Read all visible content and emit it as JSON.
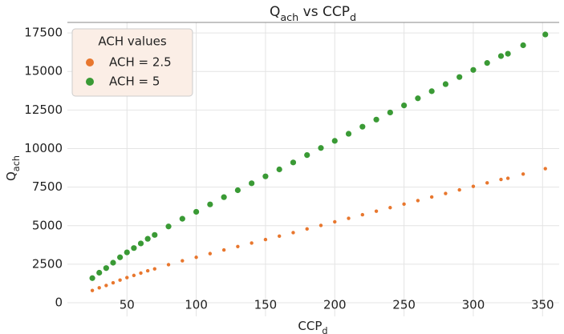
{
  "chart_data": {
    "type": "scatter",
    "title": [
      {
        "text": "Q"
      },
      {
        "text": "ach",
        "sub": true
      },
      {
        "text": " vs CCP"
      },
      {
        "text": "d",
        "sub": true
      }
    ],
    "x_label": [
      {
        "text": "CCP"
      },
      {
        "text": "d",
        "sub": true
      }
    ],
    "y_label": [
      {
        "text": "Q"
      },
      {
        "text": "ach",
        "sub": true
      }
    ],
    "legend_title": "ACH values",
    "legend": "upper left",
    "grid": true,
    "xlim": [
      7,
      362
    ],
    "ylim": [
      -880,
      18180
    ],
    "xticks": [
      50,
      100,
      150,
      200,
      250,
      300,
      350
    ],
    "yticks": [
      0,
      2500,
      5000,
      7500,
      10000,
      12500,
      15000,
      17500
    ],
    "x": [
      25,
      30,
      35,
      40,
      45,
      50,
      55,
      60,
      65,
      70,
      80,
      90,
      100,
      110,
      120,
      130,
      140,
      150,
      160,
      170,
      180,
      190,
      200,
      210,
      220,
      230,
      240,
      250,
      260,
      270,
      280,
      290,
      300,
      310,
      320,
      325,
      336,
      352
    ],
    "series": [
      {
        "name": "ACH = 2.5",
        "color": "#e8772e",
        "size": 2.2,
        "values": [
          800,
          975,
          1125,
          1300,
          1475,
          1635,
          1775,
          1925,
          2075,
          2200,
          2475,
          2725,
          2950,
          3190,
          3425,
          3650,
          3875,
          4100,
          4325,
          4550,
          4790,
          5020,
          5250,
          5480,
          5710,
          5940,
          6170,
          6400,
          6630,
          6860,
          7090,
          7320,
          7550,
          7775,
          8000,
          8075,
          8350,
          8700
        ]
      },
      {
        "name": "ACH = 5",
        "color": "#3a9a35",
        "size": 3.6,
        "values": [
          1600,
          1950,
          2250,
          2600,
          2950,
          3270,
          3550,
          3850,
          4150,
          4400,
          4950,
          5450,
          5900,
          6380,
          6850,
          7300,
          7750,
          8200,
          8650,
          9100,
          9580,
          10040,
          10500,
          10960,
          11420,
          11880,
          12340,
          12800,
          13260,
          13720,
          14180,
          14640,
          15100,
          15550,
          16000,
          16150,
          16700,
          17400
        ]
      }
    ]
  }
}
